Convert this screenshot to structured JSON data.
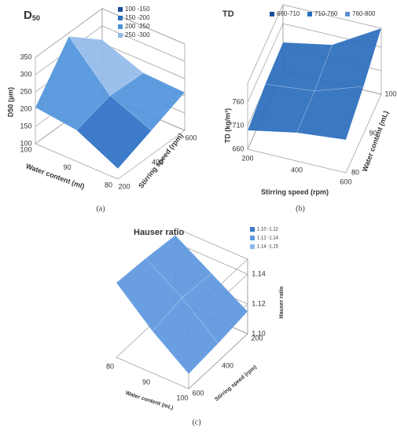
{
  "chart_data": [
    {
      "type": "surface",
      "title": "D",
      "title_sub": "50",
      "panel_label": "(a)",
      "x_label": "Stirring speed (rpm)",
      "y_label": "Water content (ml)",
      "z_label": "D50 (µm)",
      "xlim": [
        200,
        600
      ],
      "xticks": [
        200,
        400,
        600
      ],
      "ylim": [
        80,
        100
      ],
      "yticks": [
        80,
        90,
        100
      ],
      "zlim": [
        100,
        350
      ],
      "zticks": [
        100,
        150,
        200,
        250,
        300,
        350
      ],
      "z": [
        [
          130,
          170,
          210
        ],
        [
          190,
          220,
          215
        ],
        [
          205,
          340,
          260
        ]
      ],
      "legend": [
        {
          "label": "100 -150",
          "color": "#1f4e9c"
        },
        {
          "label": "150 -200",
          "color": "#2e70c4"
        },
        {
          "label": "200 -250",
          "color": "#4f94dc"
        },
        {
          "label": "250 -300",
          "color": "#93bbe9"
        }
      ]
    },
    {
      "type": "surface",
      "title": "TD",
      "panel_label": "(b)",
      "x_label": "Stirring  speed (rpm)",
      "y_label": "Water content (mL)",
      "z_label": "TD (kg/m³)",
      "xlim": [
        200,
        600
      ],
      "xticks": [
        200,
        400,
        600
      ],
      "ylim": [
        80,
        100
      ],
      "yticks": [
        80,
        90,
        100
      ],
      "zlim": [
        660,
        800
      ],
      "zticks": [
        660,
        710,
        760
      ],
      "z": [
        [
          700,
          720,
          730
        ],
        [
          715,
          725,
          760
        ],
        [
          720,
          740,
          800
        ]
      ],
      "legend": [
        {
          "label": "660-710",
          "color": "#1d4f96"
        },
        {
          "label": "710-760",
          "color": "#2a6cbd"
        },
        {
          "label": "760-800",
          "color": "#5b8fcf"
        }
      ]
    },
    {
      "type": "surface",
      "title": "Hauser ratio",
      "panel_label": "(c)",
      "x_label": "Stirring speed (rpm)",
      "y_label": "Water content (mL)",
      "z_label": "Hauser ratio",
      "xlim": [
        200,
        600
      ],
      "xticks": [
        200,
        400,
        600
      ],
      "ylim": [
        80,
        100
      ],
      "yticks": [
        80,
        90,
        100
      ],
      "zlim": [
        1.1,
        1.15
      ],
      "zticks": [
        {
          "value": 1.1,
          "label": "1.10"
        },
        1.12,
        1.14
      ],
      "z": [
        [
          1.145,
          1.148,
          1.15
        ],
        [
          1.13,
          1.132,
          1.128
        ],
        [
          1.115,
          1.112,
          1.11
        ]
      ],
      "legend": [
        {
          "label": "1.10 -1.12",
          "color": "#3a78c8"
        },
        {
          "label": "1.12 -1.14",
          "color": "#5c97de"
        },
        {
          "label": "1.14 -1.15",
          "color": "#8db7ec"
        }
      ]
    }
  ]
}
